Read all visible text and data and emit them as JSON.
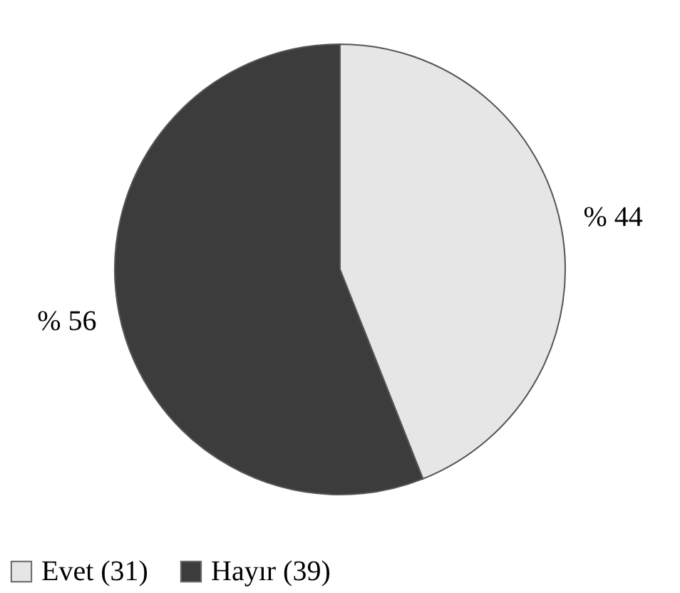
{
  "chart_data": {
    "type": "pie",
    "categories": [
      "Evet (31)",
      "Hayır (39)"
    ],
    "values": [
      44,
      56
    ],
    "colors": [
      "#e6e6e6",
      "#3c3c3c"
    ],
    "value_labels": [
      "% 44",
      "% 56"
    ],
    "legend": "bottom"
  }
}
